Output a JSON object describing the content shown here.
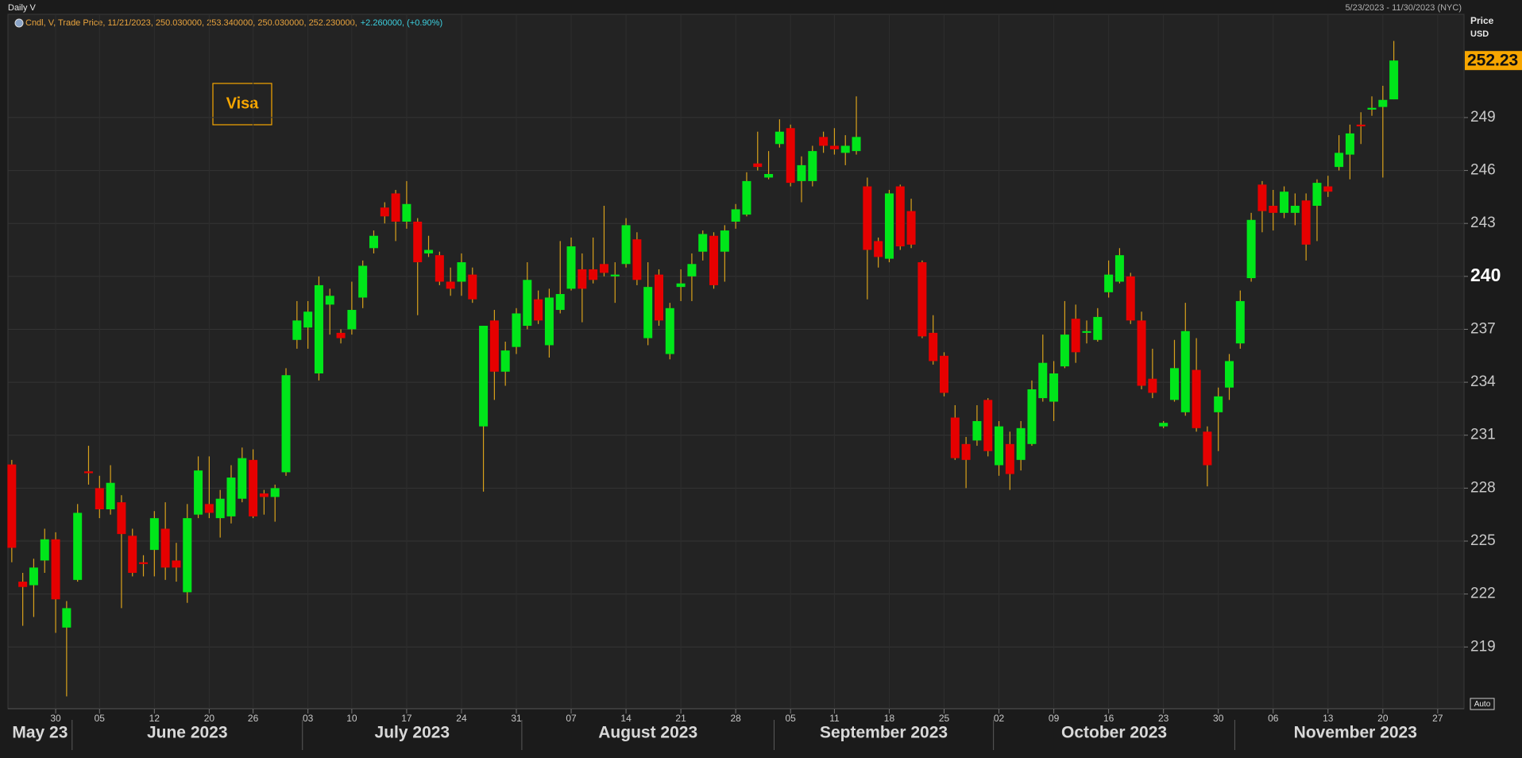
{
  "header": {
    "title": "Daily V",
    "date_range": "5/23/2023 - 11/30/2023 (NYC)",
    "legend_label": "Cndl, V, Trade Price, 11/21/2023, 250.030000, 253.340000, 250.030000, 252.230000,",
    "legend_change": "+2.260000, (+0.90%)",
    "auto_button": "Auto"
  },
  "chart_data": {
    "type": "candlestick",
    "annotation": "Visa",
    "y_axis_label": "Price",
    "y_axis_unit": "USD",
    "last_price": 252.23,
    "up_color": "#00e61a",
    "down_color": "#e60000",
    "wick_color": "#d9a21b",
    "label_color": "#f7a600",
    "grid": true,
    "bold_ytick": 240,
    "ylim": [
      215.5,
      254.85
    ],
    "yticks": [
      219,
      222,
      225,
      228,
      231,
      234,
      237,
      240,
      243,
      246,
      249
    ],
    "categories": [
      "2023-05-23",
      "2023-05-24",
      "2023-05-25",
      "2023-05-26",
      "2023-05-30",
      "2023-05-31",
      "2023-06-01",
      "2023-06-02",
      "2023-06-05",
      "2023-06-06",
      "2023-06-07",
      "2023-06-08",
      "2023-06-09",
      "2023-06-12",
      "2023-06-13",
      "2023-06-14",
      "2023-06-15",
      "2023-06-16",
      "2023-06-20",
      "2023-06-21",
      "2023-06-22",
      "2023-06-23",
      "2023-06-26",
      "2023-06-27",
      "2023-06-28",
      "2023-06-29",
      "2023-06-30",
      "2023-07-03",
      "2023-07-05",
      "2023-07-06",
      "2023-07-07",
      "2023-07-10",
      "2023-07-11",
      "2023-07-12",
      "2023-07-13",
      "2023-07-14",
      "2023-07-17",
      "2023-07-18",
      "2023-07-19",
      "2023-07-20",
      "2023-07-21",
      "2023-07-24",
      "2023-07-25",
      "2023-07-26",
      "2023-07-27",
      "2023-07-28",
      "2023-07-31",
      "2023-08-01",
      "2023-08-02",
      "2023-08-03",
      "2023-08-04",
      "2023-08-07",
      "2023-08-08",
      "2023-08-09",
      "2023-08-10",
      "2023-08-11",
      "2023-08-14",
      "2023-08-15",
      "2023-08-16",
      "2023-08-17",
      "2023-08-18",
      "2023-08-21",
      "2023-08-22",
      "2023-08-23",
      "2023-08-24",
      "2023-08-25",
      "2023-08-28",
      "2023-08-29",
      "2023-08-30",
      "2023-08-31",
      "2023-09-01",
      "2023-09-05",
      "2023-09-06",
      "2023-09-07",
      "2023-09-08",
      "2023-09-11",
      "2023-09-12",
      "2023-09-13",
      "2023-09-14",
      "2023-09-15",
      "2023-09-18",
      "2023-09-19",
      "2023-09-20",
      "2023-09-21",
      "2023-09-22",
      "2023-09-25",
      "2023-09-26",
      "2023-09-27",
      "2023-09-28",
      "2023-09-29",
      "2023-10-02",
      "2023-10-03",
      "2023-10-04",
      "2023-10-05",
      "2023-10-06",
      "2023-10-09",
      "2023-10-10",
      "2023-10-11",
      "2023-10-12",
      "2023-10-13",
      "2023-10-16",
      "2023-10-17",
      "2023-10-18",
      "2023-10-19",
      "2023-10-20",
      "2023-10-23",
      "2023-10-24",
      "2023-10-25",
      "2023-10-26",
      "2023-10-27",
      "2023-10-30",
      "2023-10-31",
      "2023-11-01",
      "2023-11-02",
      "2023-11-03",
      "2023-11-06",
      "2023-11-07",
      "2023-11-08",
      "2023-11-09",
      "2023-11-10",
      "2023-11-13",
      "2023-11-14",
      "2023-11-15",
      "2023-11-16",
      "2023-11-17",
      "2023-11-20",
      "2023-11-21"
    ],
    "open": [
      229.34,
      222.7,
      222.5,
      223.9,
      225.1,
      220.1,
      222.8,
      228.95,
      228.0,
      226.8,
      227.2,
      225.3,
      223.8,
      224.5,
      225.7,
      223.9,
      222.1,
      226.5,
      227.1,
      226.3,
      226.4,
      227.4,
      229.6,
      227.7,
      227.5,
      228.9,
      236.4,
      237.1,
      234.5,
      238.4,
      236.8,
      237.0,
      238.8,
      241.6,
      243.9,
      244.7,
      243.1,
      243.1,
      241.3,
      241.2,
      239.7,
      239.7,
      240.1,
      231.5,
      237.5,
      234.6,
      236.0,
      237.2,
      238.7,
      236.1,
      238.1,
      239.3,
      240.4,
      240.4,
      240.7,
      240.0,
      240.7,
      242.1,
      236.5,
      240.1,
      235.6,
      239.4,
      240.0,
      241.4,
      242.3,
      241.4,
      243.1,
      243.5,
      246.4,
      245.6,
      247.5,
      248.4,
      245.4,
      245.4,
      247.9,
      247.4,
      247.0,
      247.1,
      245.1,
      242.0,
      241.0,
      245.1,
      243.7,
      240.8,
      236.8,
      235.5,
      232.0,
      230.5,
      230.7,
      233.0,
      229.3,
      230.5,
      229.6,
      230.5,
      233.1,
      232.9,
      234.9,
      237.6,
      236.8,
      236.4,
      239.1,
      239.7,
      240.0,
      237.5,
      234.2,
      231.5,
      233.0,
      232.3,
      234.7,
      231.2,
      232.3,
      233.7,
      236.2,
      239.9,
      245.2,
      244.0,
      243.6,
      243.6,
      244.3,
      244.0,
      245.1,
      246.2,
      246.9,
      248.6,
      249.45,
      249.6,
      250.03
    ],
    "high": [
      229.6,
      223.2,
      224.0,
      225.7,
      225.5,
      221.6,
      227.1,
      230.4,
      228.7,
      229.3,
      227.6,
      225.7,
      224.2,
      226.7,
      227.2,
      224.9,
      227.1,
      229.8,
      229.8,
      227.9,
      229.3,
      230.3,
      230.2,
      227.9,
      228.2,
      234.8,
      238.6,
      238.6,
      240.0,
      239.3,
      237.0,
      239.7,
      240.9,
      242.6,
      244.2,
      244.9,
      245.4,
      243.3,
      242.3,
      241.4,
      240.5,
      241.3,
      240.5,
      237.2,
      238.1,
      236.3,
      238.2,
      240.8,
      239.2,
      239.3,
      242.0,
      242.2,
      241.3,
      242.2,
      244.0,
      240.8,
      243.3,
      242.5,
      240.8,
      240.4,
      238.5,
      240.4,
      241.3,
      242.6,
      242.5,
      242.9,
      244.1,
      245.9,
      248.2,
      247.1,
      248.9,
      248.6,
      246.8,
      247.4,
      248.2,
      248.4,
      248.0,
      250.2,
      245.6,
      242.2,
      244.9,
      245.2,
      244.4,
      240.9,
      237.8,
      235.7,
      232.7,
      230.9,
      232.7,
      233.1,
      231.8,
      231.2,
      231.8,
      234.1,
      236.7,
      235.2,
      238.6,
      238.4,
      237.5,
      238.2,
      240.9,
      241.6,
      240.2,
      238.0,
      235.9,
      231.8,
      236.4,
      238.5,
      236.5,
      231.5,
      233.7,
      235.6,
      239.2,
      243.6,
      245.4,
      244.9,
      245.1,
      244.7,
      244.7,
      245.5,
      245.7,
      248.0,
      248.6,
      249.3,
      250.2,
      250.8,
      253.34
    ],
    "low": [
      223.8,
      220.2,
      220.7,
      223.2,
      219.8,
      216.2,
      222.7,
      228.2,
      226.3,
      226.5,
      221.2,
      223.0,
      223.0,
      223.0,
      222.8,
      222.7,
      221.5,
      226.3,
      226.3,
      225.2,
      226.0,
      227.2,
      226.3,
      226.5,
      226.1,
      228.7,
      235.9,
      235.9,
      234.1,
      236.7,
      236.2,
      236.7,
      238.2,
      241.3,
      243.0,
      242.0,
      242.7,
      237.8,
      241.1,
      239.5,
      238.9,
      238.9,
      238.5,
      227.8,
      233.0,
      233.8,
      235.6,
      237.0,
      237.3,
      235.4,
      237.9,
      239.2,
      237.4,
      239.6,
      240.0,
      238.5,
      240.5,
      239.5,
      236.1,
      237.2,
      235.3,
      238.6,
      238.6,
      240.9,
      239.3,
      239.7,
      242.7,
      243.4,
      246.0,
      245.5,
      247.3,
      245.1,
      244.2,
      245.1,
      247.0,
      246.9,
      246.3,
      246.9,
      238.7,
      240.5,
      240.8,
      241.5,
      241.6,
      236.5,
      235.0,
      233.2,
      229.6,
      228.0,
      230.4,
      229.8,
      228.7,
      227.9,
      229.0,
      230.4,
      232.9,
      231.8,
      234.8,
      235.1,
      236.2,
      236.3,
      238.8,
      239.6,
      237.3,
      233.6,
      233.1,
      231.4,
      232.9,
      232.1,
      231.2,
      228.1,
      230.1,
      233.0,
      235.9,
      239.7,
      242.5,
      242.6,
      243.3,
      242.9,
      240.9,
      242.0,
      244.5,
      246.0,
      245.5,
      247.5,
      249.1,
      245.6,
      250.03
    ],
    "close": [
      224.62,
      222.4,
      223.5,
      225.1,
      221.7,
      221.2,
      226.6,
      228.85,
      226.8,
      228.3,
      225.4,
      223.2,
      223.7,
      226.3,
      223.5,
      223.5,
      226.3,
      229.0,
      226.6,
      227.4,
      228.6,
      229.7,
      226.4,
      227.5,
      228.0,
      234.4,
      237.5,
      238.0,
      239.5,
      238.9,
      236.5,
      238.1,
      240.6,
      242.3,
      243.4,
      243.1,
      244.1,
      240.8,
      241.5,
      239.7,
      239.3,
      240.8,
      238.7,
      237.2,
      234.6,
      235.8,
      237.9,
      239.8,
      237.5,
      238.8,
      239.0,
      241.7,
      239.3,
      239.8,
      240.2,
      240.1,
      242.9,
      239.8,
      239.4,
      237.5,
      238.2,
      239.6,
      240.7,
      242.4,
      239.5,
      242.6,
      243.8,
      245.4,
      246.2,
      245.8,
      248.2,
      245.3,
      246.3,
      247.1,
      247.4,
      247.2,
      247.4,
      247.9,
      241.5,
      241.1,
      244.7,
      241.7,
      241.8,
      236.6,
      235.2,
      233.4,
      229.7,
      229.6,
      231.8,
      230.1,
      231.5,
      228.8,
      231.4,
      233.6,
      235.1,
      234.5,
      236.7,
      235.7,
      236.9,
      237.7,
      240.1,
      241.2,
      237.5,
      233.8,
      233.4,
      231.7,
      234.8,
      236.9,
      231.4,
      229.3,
      233.2,
      235.2,
      238.6,
      243.2,
      243.7,
      243.6,
      244.8,
      244.0,
      241.8,
      245.3,
      244.8,
      247.0,
      248.1,
      248.5,
      249.55,
      250.0,
      252.23
    ],
    "xticks": [
      {
        "value": "2023-05-30",
        "label": "30"
      },
      {
        "value": "2023-06-05",
        "label": "05"
      },
      {
        "value": "2023-06-12",
        "label": "12"
      },
      {
        "value": "2023-06-20",
        "label": "20"
      },
      {
        "value": "2023-06-26",
        "label": "26"
      },
      {
        "value": "2023-07-03",
        "label": "03"
      },
      {
        "value": "2023-07-10",
        "label": "10"
      },
      {
        "value": "2023-07-17",
        "label": "17"
      },
      {
        "value": "2023-07-24",
        "label": "24"
      },
      {
        "value": "2023-07-31",
        "label": "31"
      },
      {
        "value": "2023-08-07",
        "label": "07"
      },
      {
        "value": "2023-08-14",
        "label": "14"
      },
      {
        "value": "2023-08-21",
        "label": "21"
      },
      {
        "value": "2023-08-28",
        "label": "28"
      },
      {
        "value": "2023-09-05",
        "label": "05"
      },
      {
        "value": "2023-09-11",
        "label": "11"
      },
      {
        "value": "2023-09-18",
        "label": "18"
      },
      {
        "value": "2023-09-25",
        "label": "25"
      },
      {
        "value": "2023-10-02",
        "label": "02"
      },
      {
        "value": "2023-10-09",
        "label": "09"
      },
      {
        "value": "2023-10-16",
        "label": "16"
      },
      {
        "value": "2023-10-23",
        "label": "23"
      },
      {
        "value": "2023-10-30",
        "label": "30"
      },
      {
        "value": "2023-11-06",
        "label": "06"
      },
      {
        "value": "2023-11-13",
        "label": "13"
      },
      {
        "value": "2023-11-20",
        "label": "20"
      },
      {
        "value": "2023-11-27",
        "label": "27"
      }
    ],
    "months": [
      {
        "value": "2023-05",
        "label": "May 23"
      },
      {
        "value": "2023-06",
        "label": "June 2023"
      },
      {
        "value": "2023-07",
        "label": "July 2023"
      },
      {
        "value": "2023-08",
        "label": "August 2023"
      },
      {
        "value": "2023-09",
        "label": "September 2023"
      },
      {
        "value": "2023-10",
        "label": "October 2023"
      },
      {
        "value": "2023-11",
        "label": "November 2023"
      }
    ]
  }
}
